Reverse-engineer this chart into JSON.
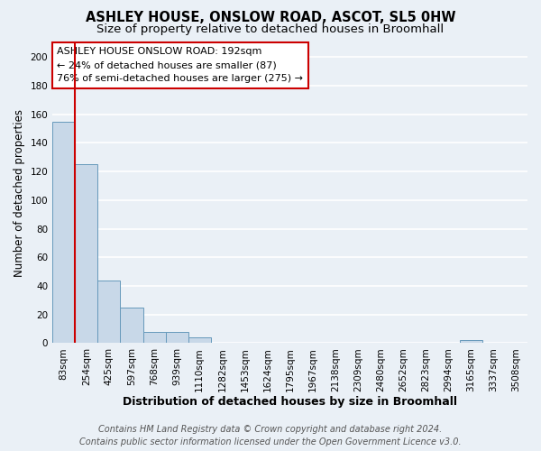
{
  "title": "ASHLEY HOUSE, ONSLOW ROAD, ASCOT, SL5 0HW",
  "subtitle": "Size of property relative to detached houses in Broomhall",
  "xlabel": "Distribution of detached houses by size in Broomhall",
  "ylabel": "Number of detached properties",
  "bin_labels": [
    "83sqm",
    "254sqm",
    "425sqm",
    "597sqm",
    "768sqm",
    "939sqm",
    "1110sqm",
    "1282sqm",
    "1453sqm",
    "1624sqm",
    "1795sqm",
    "1967sqm",
    "2138sqm",
    "2309sqm",
    "2480sqm",
    "2652sqm",
    "2823sqm",
    "2994sqm",
    "3165sqm",
    "3337sqm",
    "3508sqm"
  ],
  "bin_values": [
    155,
    125,
    44,
    25,
    8,
    8,
    4,
    0,
    0,
    0,
    0,
    0,
    0,
    0,
    0,
    0,
    0,
    0,
    2,
    0,
    0
  ],
  "bar_color": "#c8d8e8",
  "bar_edge_color": "#6699bb",
  "annotation_text": "ASHLEY HOUSE ONSLOW ROAD: 192sqm\n← 24% of detached houses are smaller (87)\n76% of semi-detached houses are larger (275) →",
  "annotation_box_color": "#ffffff",
  "annotation_box_edge_color": "#cc0000",
  "ylim": [
    0,
    210
  ],
  "yticks": [
    0,
    20,
    40,
    60,
    80,
    100,
    120,
    140,
    160,
    180,
    200
  ],
  "footer_line1": "Contains HM Land Registry data © Crown copyright and database right 2024.",
  "footer_line2": "Contains public sector information licensed under the Open Government Licence v3.0.",
  "bg_color": "#eaf0f6",
  "grid_color": "#ffffff",
  "title_fontsize": 10.5,
  "subtitle_fontsize": 9.5,
  "axis_label_fontsize": 8.5,
  "tick_fontsize": 7.5,
  "annotation_fontsize": 8,
  "footer_fontsize": 7,
  "red_line_color": "#cc0000",
  "red_line_bin_index": 0,
  "n_bins": 21
}
